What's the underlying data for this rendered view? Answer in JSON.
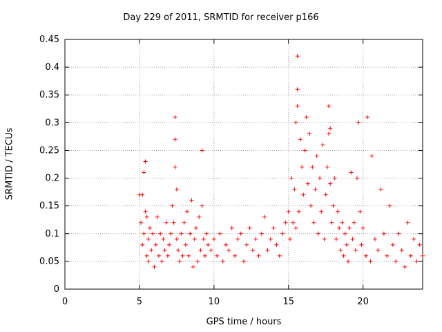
{
  "chart_data": {
    "type": "scatter",
    "title": "Day 229 of 2011, SRMTID for receiver p166",
    "xlabel": "GPS time / hours",
    "ylabel": "SRMTID / TECUs",
    "xlim": [
      0,
      24
    ],
    "ylim": [
      0,
      0.45
    ],
    "x_ticks": [
      "0",
      "5",
      "10",
      "15",
      "20"
    ],
    "y_ticks": [
      "0",
      "0.05",
      "0.1",
      "0.15",
      "0.2",
      "0.25",
      "0.3",
      "0.35",
      "0.4",
      "0.45"
    ],
    "grid": true,
    "marker": "+",
    "color": "#ff0000",
    "series": [
      {
        "x": [
          5.0,
          5.1,
          5.2,
          5.2,
          5.3,
          5.3,
          5.4,
          5.4,
          5.5,
          5.5,
          5.6,
          5.6,
          5.7,
          5.8,
          5.9,
          6.0,
          6.1,
          6.2,
          6.3,
          6.4,
          6.5,
          6.6,
          6.7,
          6.8,
          6.9,
          7.0,
          7.1,
          7.2,
          7.3,
          7.4,
          7.4,
          7.4,
          7.5,
          7.5,
          7.6,
          7.7,
          7.8,
          7.9,
          8.0,
          8.1,
          8.2,
          8.3,
          8.4,
          8.5,
          8.6,
          8.7,
          8.8,
          8.9,
          9.0,
          9.1,
          9.2,
          9.2,
          9.3,
          9.4,
          9.5,
          9.6,
          9.8,
          10.0,
          10.2,
          10.4,
          10.6,
          10.8,
          11.0,
          11.2,
          11.4,
          11.6,
          11.8,
          12.0,
          12.2,
          12.4,
          12.6,
          12.8,
          13.0,
          13.2,
          13.4,
          13.6,
          13.8,
          14.0,
          14.2,
          14.4,
          14.6,
          14.8,
          15.0,
          15.1,
          15.2,
          15.3,
          15.4,
          15.5,
          15.5,
          15.6,
          15.6,
          15.6,
          15.7,
          15.8,
          15.9,
          16.0,
          16.1,
          16.2,
          16.3,
          16.4,
          16.5,
          16.6,
          16.7,
          16.8,
          16.9,
          17.0,
          17.1,
          17.2,
          17.3,
          17.4,
          17.5,
          17.6,
          17.7,
          17.7,
          17.8,
          17.8,
          17.9,
          18.0,
          18.1,
          18.2,
          18.3,
          18.4,
          18.5,
          18.6,
          18.7,
          18.8,
          18.9,
          19.0,
          19.1,
          19.2,
          19.3,
          19.4,
          19.5,
          19.6,
          19.7,
          19.8,
          19.9,
          20.0,
          20.2,
          20.3,
          20.5,
          20.6,
          20.8,
          21.0,
          21.2,
          21.4,
          21.6,
          21.8,
          22.0,
          22.2,
          22.4,
          22.6,
          22.8,
          23.0,
          23.2,
          23.4,
          23.6,
          23.8,
          24.0
        ],
        "y": [
          0.17,
          0.12,
          0.08,
          0.17,
          0.1,
          0.21,
          0.14,
          0.23,
          0.06,
          0.13,
          0.09,
          0.05,
          0.11,
          0.07,
          0.1,
          0.04,
          0.08,
          0.13,
          0.06,
          0.1,
          0.05,
          0.09,
          0.07,
          0.12,
          0.06,
          0.08,
          0.1,
          0.15,
          0.12,
          0.27,
          0.31,
          0.22,
          0.18,
          0.09,
          0.07,
          0.05,
          0.1,
          0.06,
          0.12,
          0.08,
          0.14,
          0.06,
          0.1,
          0.16,
          0.04,
          0.09,
          0.11,
          0.05,
          0.13,
          0.07,
          0.25,
          0.15,
          0.09,
          0.06,
          0.1,
          0.08,
          0.07,
          0.09,
          0.06,
          0.1,
          0.05,
          0.08,
          0.07,
          0.11,
          0.06,
          0.09,
          0.1,
          0.05,
          0.08,
          0.11,
          0.07,
          0.09,
          0.06,
          0.1,
          0.13,
          0.07,
          0.09,
          0.11,
          0.08,
          0.06,
          0.1,
          0.12,
          0.14,
          0.09,
          0.2,
          0.12,
          0.18,
          0.3,
          0.11,
          0.42,
          0.36,
          0.33,
          0.14,
          0.27,
          0.22,
          0.17,
          0.25,
          0.31,
          0.19,
          0.28,
          0.15,
          0.22,
          0.12,
          0.18,
          0.24,
          0.1,
          0.2,
          0.14,
          0.26,
          0.09,
          0.17,
          0.22,
          0.33,
          0.28,
          0.19,
          0.29,
          0.12,
          0.15,
          0.2,
          0.09,
          0.14,
          0.11,
          0.07,
          0.12,
          0.06,
          0.1,
          0.08,
          0.05,
          0.11,
          0.21,
          0.09,
          0.12,
          0.07,
          0.2,
          0.3,
          0.14,
          0.08,
          0.11,
          0.06,
          0.31,
          0.05,
          0.24,
          0.09,
          0.07,
          0.18,
          0.1,
          0.06,
          0.15,
          0.08,
          0.05,
          0.1,
          0.07,
          0.04,
          0.12,
          0.06,
          0.09,
          0.05,
          0.08,
          0.06
        ]
      }
    ]
  }
}
